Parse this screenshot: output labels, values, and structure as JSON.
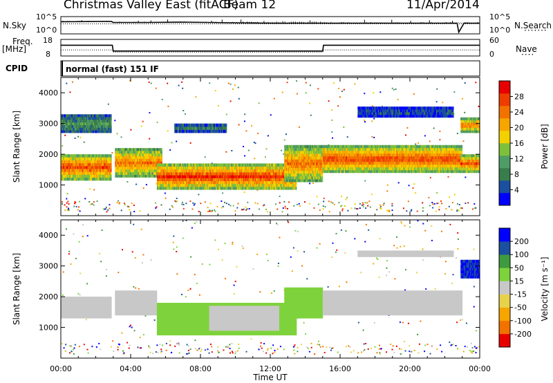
{
  "header": {
    "station": "Christmas Valley East (fitACF)",
    "beam": "Beam 12",
    "date": "11/Apr/2014"
  },
  "noise_panel": {
    "left_label": "N.Sky",
    "right_label": "N.Search",
    "left_ticks": [
      "10^5",
      "10^0"
    ],
    "right_ticks": [
      "10^5",
      "10^0"
    ]
  },
  "freq_panel": {
    "left_label_1": "Freq.",
    "left_label_2": "[MHz]",
    "right_label": "Nave",
    "left_ticks": [
      "18",
      "8"
    ],
    "right_ticks": [
      "60",
      "0"
    ]
  },
  "cpid": {
    "label": "CPID",
    "mode": "normal (fast) 151 IF"
  },
  "chart_data": [
    {
      "type": "line",
      "title": "N.Sky / N.Search",
      "x_hours": [
        0,
        2.9,
        3.0,
        5.0,
        7.0,
        8.5,
        10.0,
        12.0,
        15.0,
        18.0,
        20.0,
        21.7,
        22.7,
        22.8,
        23.1,
        24.0
      ],
      "series": [
        {
          "name": "N.Sky",
          "log_values": [
            3.5,
            3.6,
            3.3,
            3.3,
            3.4,
            3.3,
            3.2,
            3.1,
            3.1,
            3.1,
            3.1,
            3.1,
            3.1,
            0.5,
            3.1,
            3.1
          ]
        }
      ],
      "ylim_log": [
        0,
        5
      ]
    },
    {
      "type": "line",
      "title": "Freq. / Nave",
      "x_hours": [
        0,
        2.95,
        3.0,
        15.0,
        15.05,
        24.0
      ],
      "series": [
        {
          "name": "Freq.",
          "values": [
            14.5,
            14.5,
            11.0,
            11.0,
            14.5,
            14.5
          ]
        },
        {
          "name": "Nave",
          "values": [
            22,
            22,
            14,
            14,
            22,
            22
          ]
        }
      ],
      "ylim_left": [
        8,
        18
      ],
      "ylim_right": [
        0,
        60
      ]
    },
    {
      "type": "heatmap",
      "panel": "power",
      "ylabel": "Slant Range [km]",
      "ylim": [
        0,
        4500
      ],
      "yticks": [
        1000,
        2000,
        3000,
        4000
      ],
      "xlim": [
        0,
        24
      ],
      "colorbar_label": "Power [dB]",
      "colorbar_ticks": [
        4,
        8,
        12,
        16,
        20,
        24,
        28
      ],
      "colors": [
        "#0000ff",
        "#1b4f9f",
        "#3a7d4c",
        "#4f9c66",
        "#7ec03c",
        "#f3d100",
        "#f7a500",
        "#f27200",
        "#ef3c00",
        "#e80000"
      ],
      "regions": [
        {
          "t0": 0.0,
          "t1": 2.9,
          "r0": 1150,
          "r1": 2000,
          "level": 0.9
        },
        {
          "t0": 0.0,
          "t1": 2.9,
          "r0": 2700,
          "r1": 3300,
          "level": 0.35
        },
        {
          "t0": 3.1,
          "t1": 5.8,
          "r0": 1250,
          "r1": 2200,
          "level": 0.8
        },
        {
          "t0": 5.5,
          "t1": 13.5,
          "r0": 850,
          "r1": 1700,
          "level": 0.95
        },
        {
          "t0": 6.5,
          "t1": 9.5,
          "r0": 2700,
          "r1": 3000,
          "level": 0.3
        },
        {
          "t0": 12.8,
          "t1": 15.0,
          "r0": 1100,
          "r1": 2300,
          "level": 0.8
        },
        {
          "t0": 15.0,
          "t1": 23.0,
          "r0": 1400,
          "r1": 2300,
          "level": 0.9
        },
        {
          "t0": 17.0,
          "t1": 22.5,
          "r0": 3200,
          "r1": 3550,
          "level": 0.2
        },
        {
          "t0": 22.9,
          "t1": 24.0,
          "r0": 1400,
          "r1": 2000,
          "level": 0.9
        },
        {
          "t0": 22.9,
          "t1": 24.0,
          "r0": 2700,
          "r1": 3200,
          "level": 0.85
        }
      ]
    },
    {
      "type": "heatmap",
      "panel": "velocity",
      "ylabel": "Slant Range [km]",
      "ylim": [
        0,
        4500
      ],
      "yticks": [
        1000,
        2000,
        3000,
        4000
      ],
      "xlabel": "Time UT",
      "xticks": [
        "00:00",
        "04:00",
        "08:00",
        "12:00",
        "16:00",
        "20:00",
        "00:00"
      ],
      "xlim": [
        0,
        24
      ],
      "colorbar_label": "Velocity [m s⁻¹]",
      "colorbar_ticks": [
        -200,
        -100,
        -50,
        -15,
        15,
        50,
        100,
        200
      ],
      "colors": [
        "#e80000",
        "#f27200",
        "#f7a500",
        "#e8d24a",
        "#c8c8c8",
        "#7ed33c",
        "#3e9a3e",
        "#1b4f9f",
        "#0000ff"
      ],
      "regions": [
        {
          "t0": 0.0,
          "t1": 2.9,
          "r0": 1300,
          "r1": 2000,
          "v": 0
        },
        {
          "t0": 3.1,
          "t1": 5.5,
          "r0": 1400,
          "r1": 2200,
          "v": 0
        },
        {
          "t0": 5.5,
          "t1": 13.5,
          "r0": 750,
          "r1": 1800,
          "v": 30
        },
        {
          "t0": 8.5,
          "t1": 12.5,
          "r0": 900,
          "r1": 1700,
          "v": 0
        },
        {
          "t0": 12.8,
          "t1": 15.0,
          "r0": 1300,
          "r1": 2300,
          "v": 30
        },
        {
          "t0": 15.0,
          "t1": 23.0,
          "r0": 1400,
          "r1": 2200,
          "v": 0
        },
        {
          "t0": 17.0,
          "t1": 22.5,
          "r0": 3300,
          "r1": 3500,
          "v": 0
        },
        {
          "t0": 22.9,
          "t1": 24.0,
          "r0": 2600,
          "r1": 3200,
          "v": 200
        }
      ]
    }
  ],
  "colors": {
    "panel_border": "#000000",
    "freq_line": "#000000"
  }
}
